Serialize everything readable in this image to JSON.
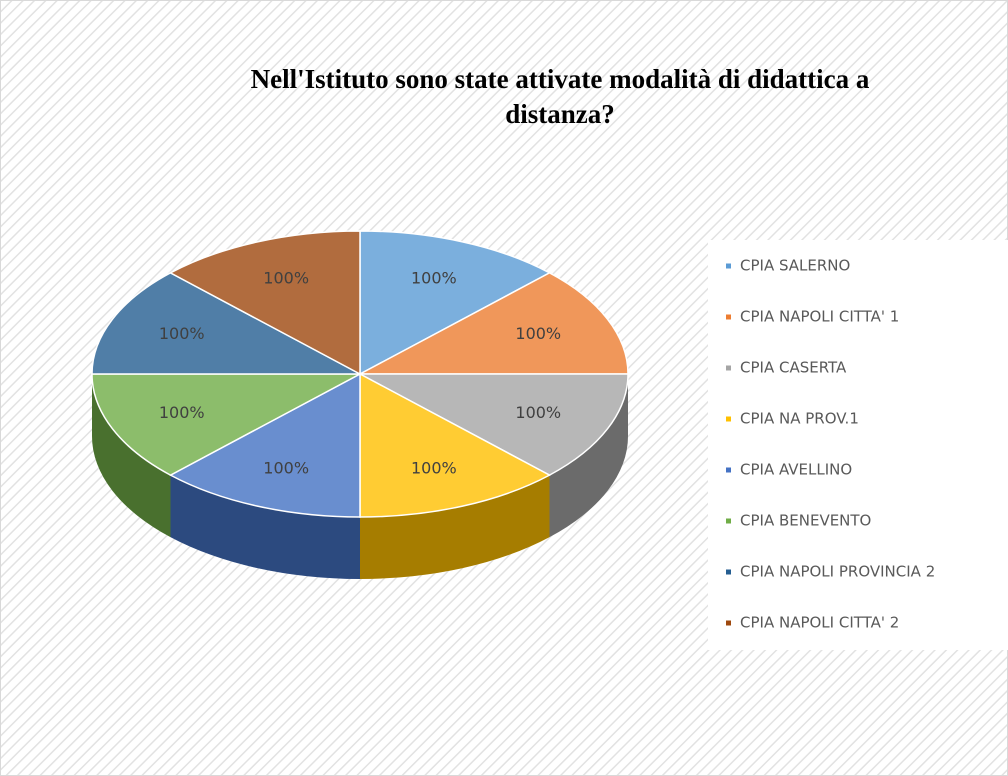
{
  "chart_data": {
    "type": "pie3d",
    "title": "Nell'Istituto sono state attivate modalità di didattica a distanza?",
    "categories": [
      "CPIA SALERNO",
      "CPIA NAPOLI CITTA' 1",
      "CPIA CASERTA",
      "CPIA NA PROV.1",
      "CPIA AVELLINO",
      "CPIA BENEVENTO",
      "CPIA NAPOLI PROVINCIA 2",
      "CPIA NAPOLI CITTA' 2"
    ],
    "values": [
      100,
      100,
      100,
      100,
      100,
      100,
      100,
      100
    ],
    "value_labels": [
      "100%",
      "100%",
      "100%",
      "100%",
      "100%",
      "100%",
      "100%",
      "100%"
    ],
    "colors": [
      "#5b9bd5",
      "#ed7d31",
      "#a5a5a5",
      "#ffc000",
      "#4472c4",
      "#70ad47",
      "#255e91",
      "#9e480e"
    ],
    "legend": "right"
  }
}
